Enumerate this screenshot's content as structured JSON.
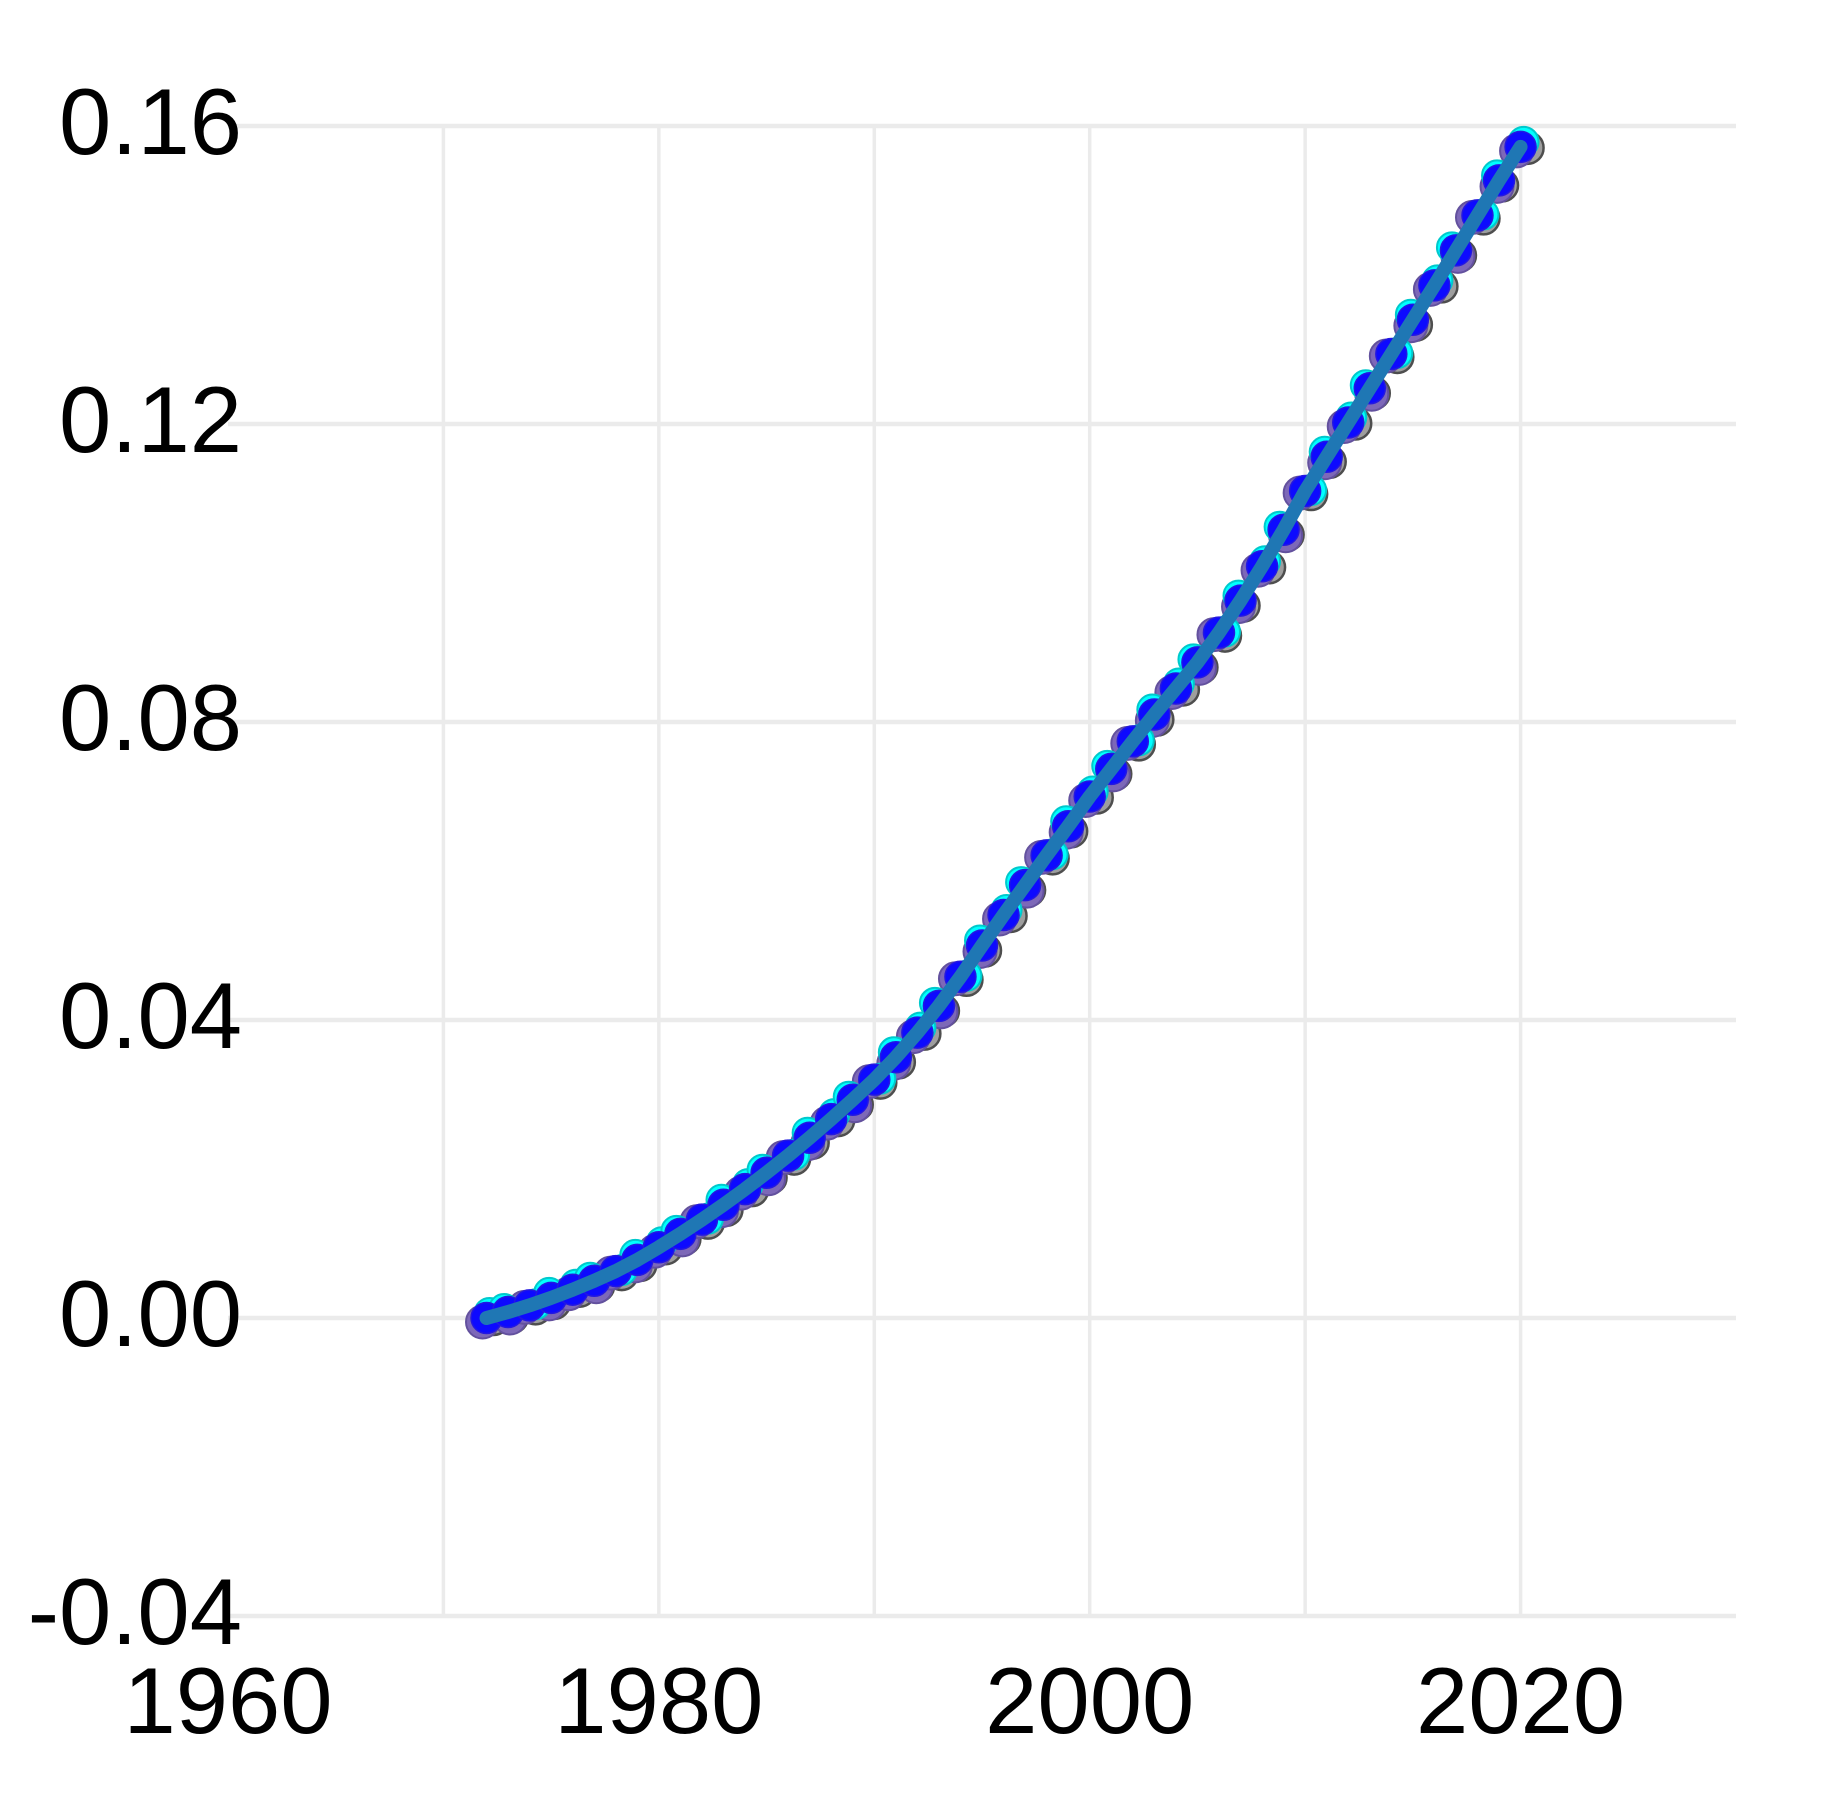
{
  "chart_data": {
    "type": "scatter",
    "title": "",
    "xlabel": "",
    "ylabel": "",
    "legend": "none",
    "grid": true,
    "background_color": "#ffffff",
    "gridline_color": "#ebebeb",
    "x_axis": {
      "range": [
        1960,
        2030
      ],
      "tick_labels": [
        "1960",
        "1980",
        "2000",
        "2020"
      ],
      "tick_values": [
        1960,
        1980,
        2000,
        2020
      ],
      "gridlines": [
        1970,
        1980,
        1990,
        2000,
        2010,
        2020
      ]
    },
    "y_axis": {
      "range": [
        -0.04,
        0.16
      ],
      "tick_labels": [
        "-0.04",
        "0.00",
        "0.04",
        "0.08",
        "0.12",
        "0.16"
      ],
      "tick_values": [
        -0.04,
        0.0,
        0.04,
        0.08,
        0.12,
        0.16
      ],
      "gridlines": [
        -0.04,
        0.0,
        0.04,
        0.08,
        0.12,
        0.16
      ]
    },
    "x": [
      1972,
      1973,
      1974,
      1975,
      1976,
      1977,
      1978,
      1979,
      1980,
      1981,
      1982,
      1983,
      1984,
      1985,
      1986,
      1987,
      1988,
      1989,
      1990,
      1991,
      1992,
      1993,
      1994,
      1995,
      1996,
      1997,
      1998,
      1999,
      2000,
      2001,
      2002,
      2003,
      2004,
      2005,
      2006,
      2007,
      2008,
      2009,
      2010,
      2011,
      2012,
      2013,
      2014,
      2015,
      2016,
      2017,
      2018,
      2019,
      2020
    ],
    "values": [
      0.0,
      0.0008,
      0.0017,
      0.0027,
      0.0038,
      0.005,
      0.0063,
      0.0078,
      0.0095,
      0.0113,
      0.0132,
      0.0152,
      0.0173,
      0.0195,
      0.0218,
      0.0242,
      0.0267,
      0.0293,
      0.032,
      0.035,
      0.0383,
      0.0419,
      0.0458,
      0.05,
      0.0541,
      0.0581,
      0.0621,
      0.066,
      0.07,
      0.0737,
      0.0774,
      0.081,
      0.0845,
      0.088,
      0.092,
      0.0963,
      0.1009,
      0.1058,
      0.111,
      0.1156,
      0.1202,
      0.1248,
      0.1294,
      0.134,
      0.1386,
      0.1433,
      0.148,
      0.1527,
      0.1572
    ],
    "series": [
      {
        "name": "markers-gray",
        "type": "scatter-markers",
        "marker_color": "#9e9e9e",
        "marker_edge_color": "#4e4e4e",
        "shares_values": true
      },
      {
        "name": "markers-purple",
        "type": "scatter-markers",
        "marker_color": "#7d68b8",
        "marker_edge_color": "#63519e",
        "shares_values": true
      },
      {
        "name": "markers-cyan",
        "type": "scatter-markers",
        "marker_color": "#00ffff",
        "marker_edge_color": "#00c9cc",
        "shares_values": true
      },
      {
        "name": "markers-blue",
        "type": "scatter-markers",
        "marker_color": "#0d0aff",
        "marker_edge_color": "#2418e0",
        "shares_values": true
      },
      {
        "name": "trend-line",
        "type": "line",
        "line_color": "#1f77b4",
        "line_width": 14,
        "shares_values": true
      }
    ]
  }
}
